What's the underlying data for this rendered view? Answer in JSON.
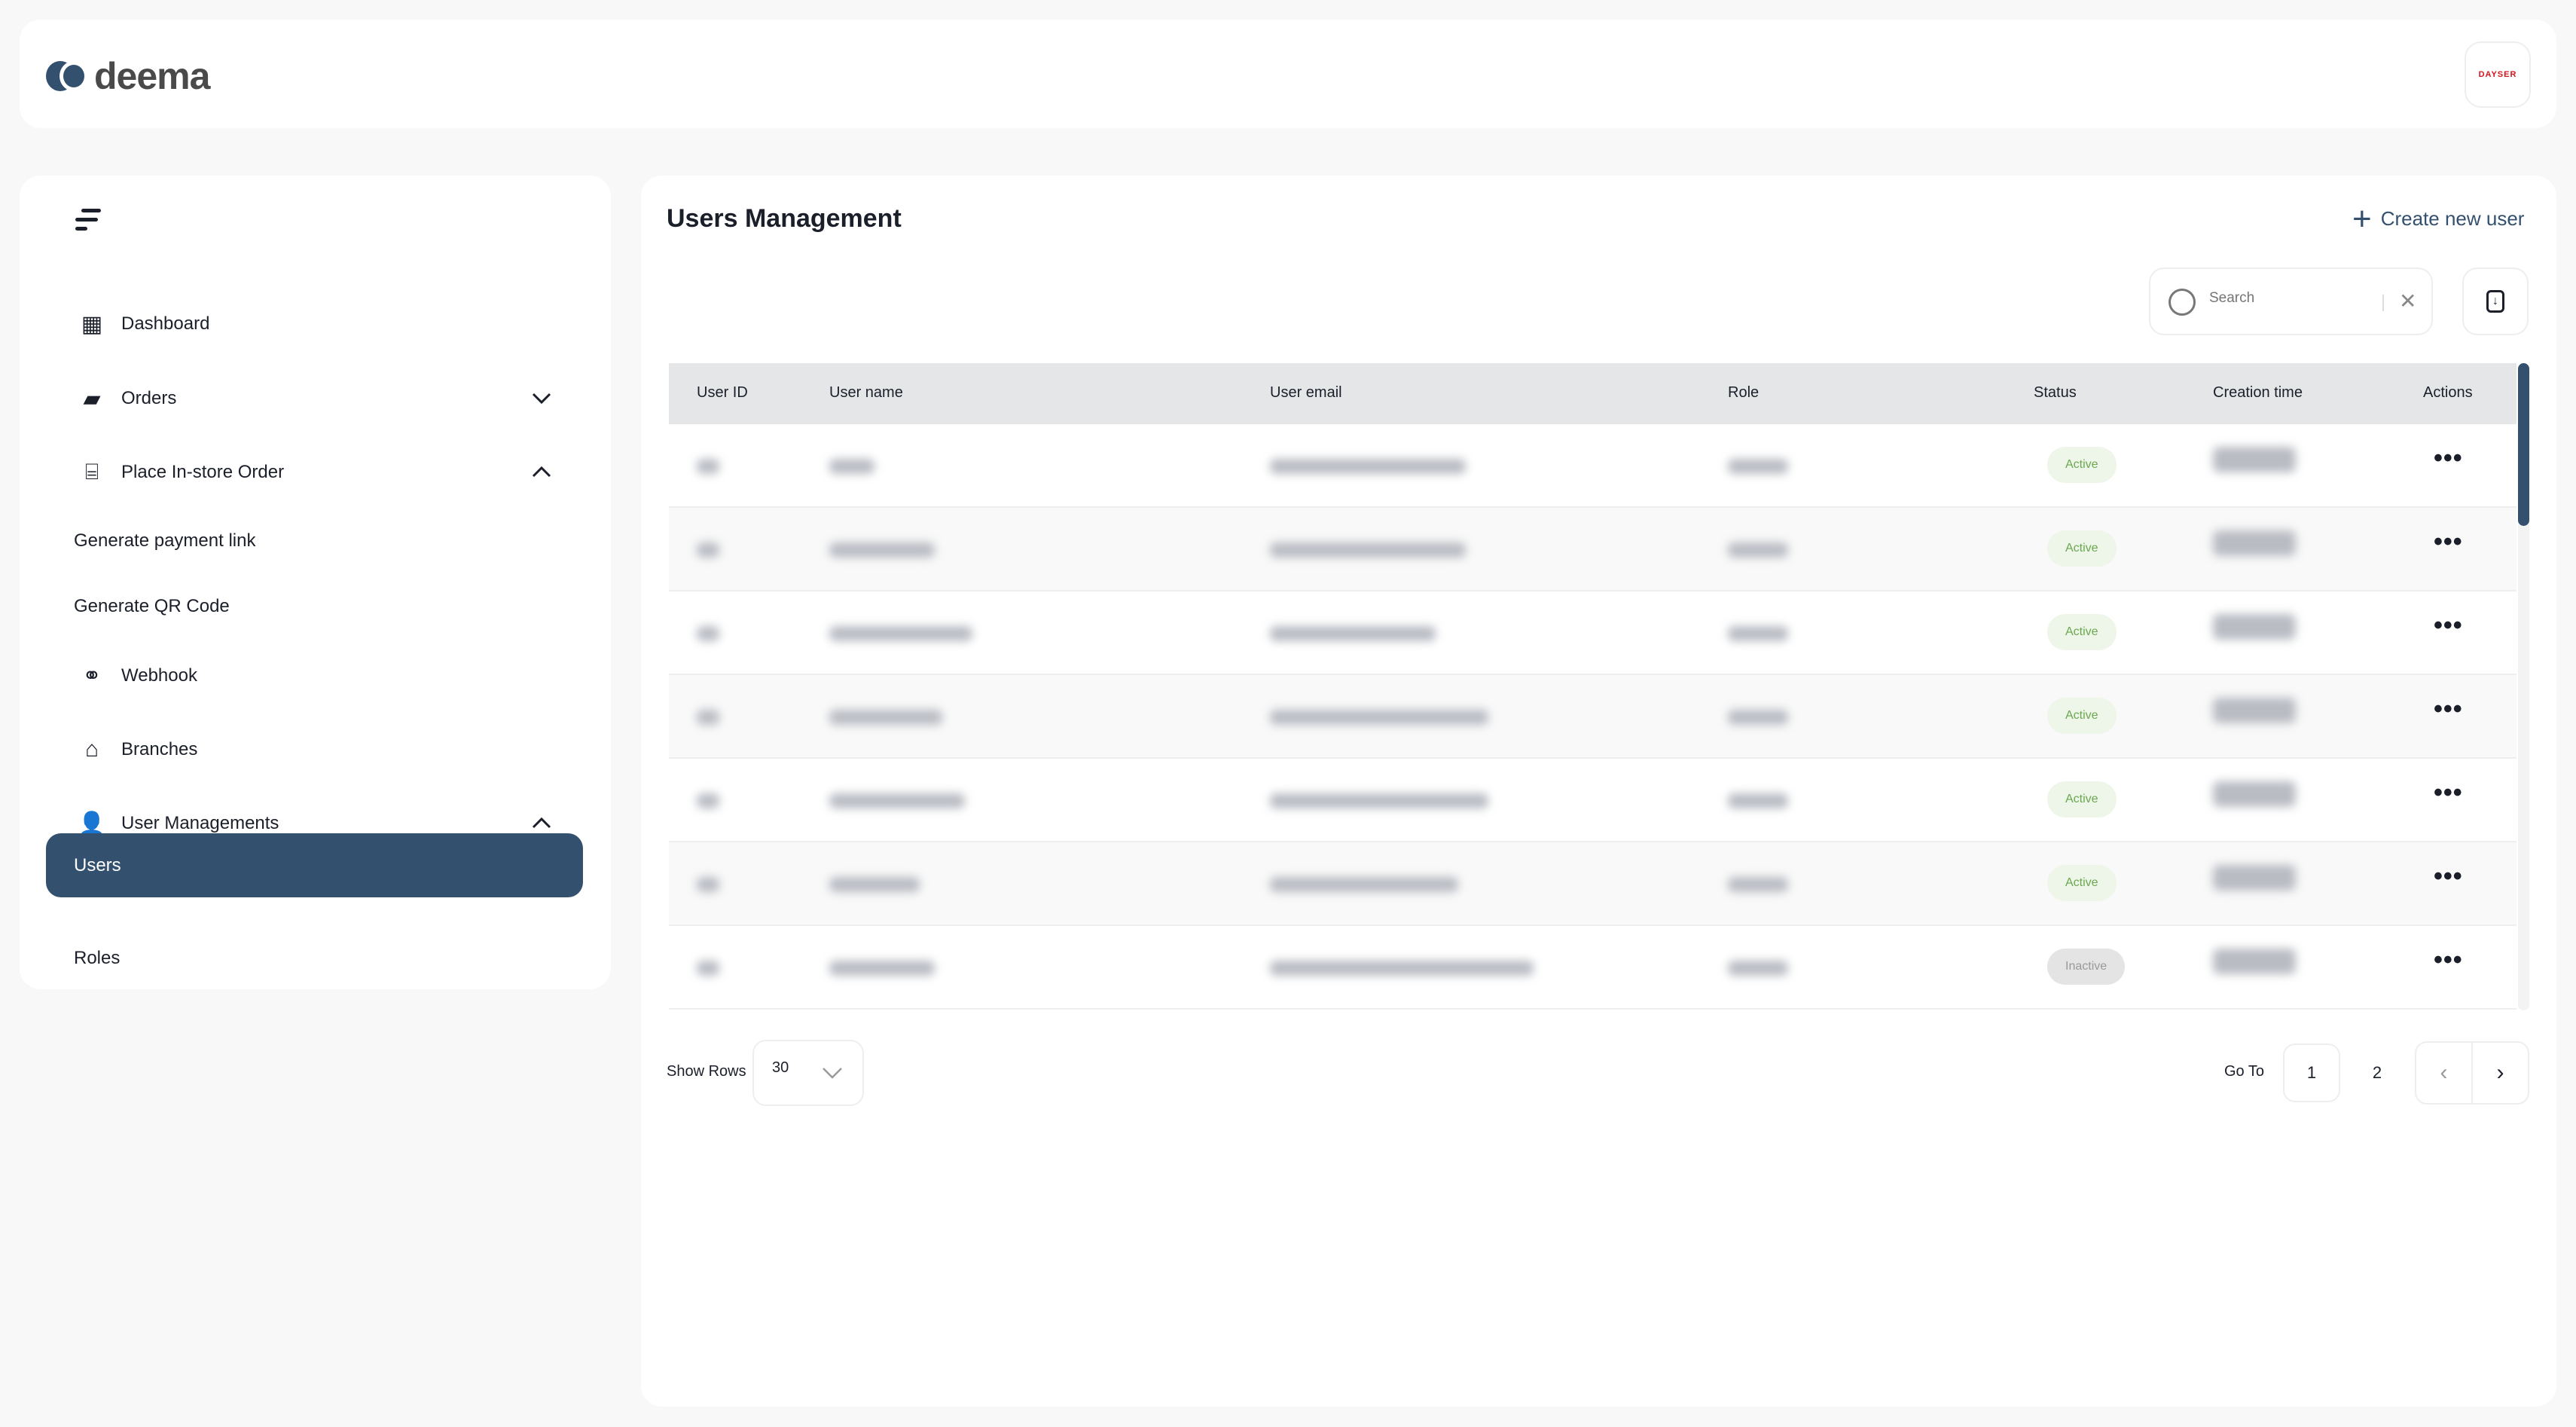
{
  "header": {
    "logo_text": "deema",
    "avatar_text": "DAYSER"
  },
  "sidebar": {
    "items": [
      {
        "label": "Dashboard",
        "icon": "grid-icon"
      },
      {
        "label": "Orders",
        "icon": "box-icon",
        "chevron": "down"
      },
      {
        "label": "Place In-store Order",
        "icon": "scan-icon",
        "chevron": "up"
      },
      {
        "label": "Generate payment link"
      },
      {
        "label": "Generate QR Code"
      },
      {
        "label": "Webhook",
        "icon": "webhook-icon"
      },
      {
        "label": "Branches",
        "icon": "store-icon"
      },
      {
        "label": "User Managements",
        "icon": "user-group-icon",
        "chevron": "up"
      },
      {
        "label": "Users",
        "active": true
      },
      {
        "label": "Roles"
      }
    ]
  },
  "main": {
    "title": "Users Management",
    "create_label": "Create new user",
    "search_placeholder": "Search",
    "columns": [
      "User ID",
      "User name",
      "User email",
      "Role",
      "Status",
      "Creation time",
      "Actions"
    ],
    "rows": [
      {
        "status": "Active"
      },
      {
        "status": "Active"
      },
      {
        "status": "Active"
      },
      {
        "status": "Active"
      },
      {
        "status": "Active"
      },
      {
        "status": "Active"
      },
      {
        "status": "Inactive"
      }
    ],
    "status_colors": {
      "Active": {
        "bg": "#eef5e9",
        "fg": "#6aa84f"
      },
      "Inactive": {
        "bg": "#e4e4e4",
        "fg": "#999999"
      }
    },
    "footer": {
      "show_rows_label": "Show Rows",
      "rows_value": "30",
      "goto_label": "Go To",
      "pages": [
        "1",
        "2"
      ]
    }
  },
  "accent": "#34506f"
}
